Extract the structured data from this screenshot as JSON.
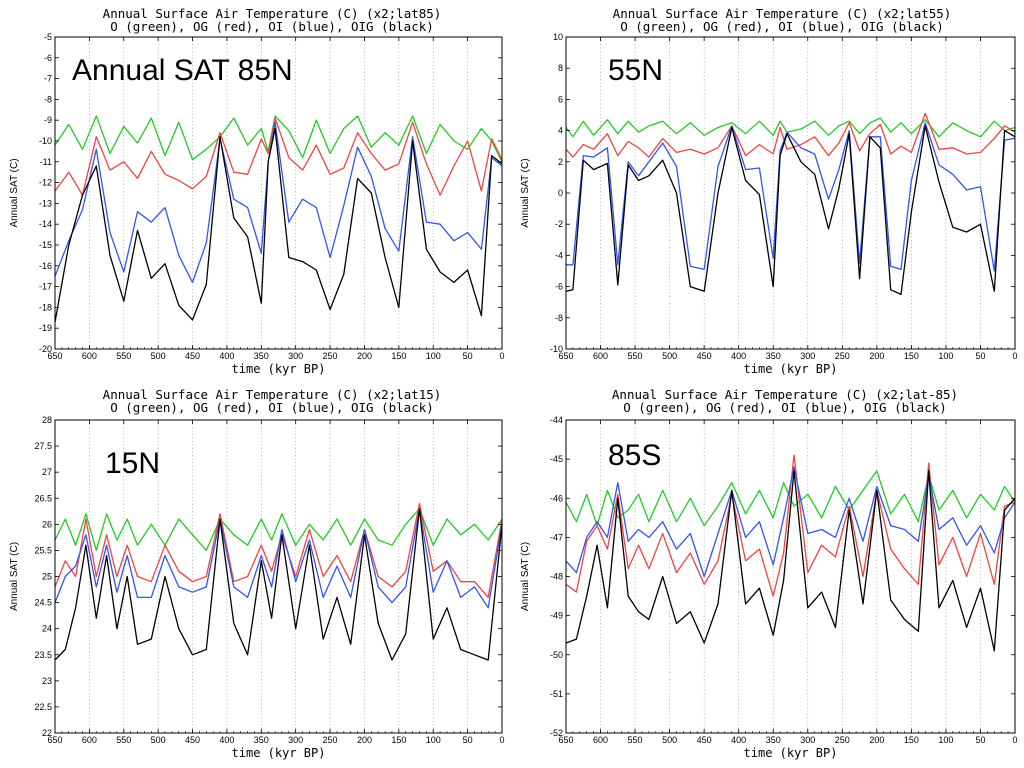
{
  "colors": {
    "green": "#22cc22",
    "red": "#ee4444",
    "blue": "#3355ee",
    "black": "#000000",
    "grid": "#888888"
  },
  "chart_data": [
    {
      "type": "line",
      "title": "Annual Surface Air Temperature (C) (x2;lat85)",
      "subtitle": "O (green), OG (red), OI (blue), OIG (black)",
      "overlay_label": "Annual SAT 85N",
      "xlabel": "time (kyr BP)",
      "ylabel": "Annual SAT (C)",
      "xlim": [
        650,
        0
      ],
      "ylim": [
        -20,
        -5
      ],
      "xticks": [
        650,
        600,
        550,
        500,
        450,
        400,
        350,
        300,
        250,
        200,
        150,
        100,
        50,
        0
      ],
      "yticks": [
        -20,
        -19,
        -18,
        -17,
        -16,
        -15,
        -14,
        -13,
        -12,
        -11,
        -10,
        -9,
        -8,
        -7,
        -6,
        -5
      ],
      "grid": "vertical-dotted",
      "x": [
        650,
        630,
        610,
        590,
        570,
        550,
        530,
        510,
        490,
        470,
        450,
        430,
        410,
        390,
        370,
        350,
        340,
        330,
        310,
        290,
        270,
        250,
        230,
        210,
        190,
        170,
        150,
        130,
        110,
        90,
        70,
        50,
        30,
        15,
        0
      ],
      "series": [
        {
          "name": "O",
          "color": "green",
          "values": [
            -10.2,
            -9.2,
            -10.4,
            -8.8,
            -10.6,
            -9.3,
            -10.1,
            -8.9,
            -10.7,
            -9.1,
            -10.9,
            -10.4,
            -9.8,
            -8.9,
            -10.2,
            -9.4,
            -10.5,
            -8.8,
            -9.5,
            -10.8,
            -9.0,
            -10.6,
            -9.4,
            -8.8,
            -10.3,
            -9.6,
            -10.2,
            -8.8,
            -10.6,
            -9.2,
            -10.0,
            -10.4,
            -9.4,
            -10.0,
            -11.0
          ]
        },
        {
          "name": "OG",
          "color": "red",
          "values": [
            -12.4,
            -11.5,
            -12.6,
            -9.8,
            -11.4,
            -11.0,
            -11.8,
            -10.5,
            -11.6,
            -11.9,
            -12.3,
            -11.7,
            -9.6,
            -11.5,
            -11.6,
            -9.9,
            -10.6,
            -8.9,
            -10.8,
            -11.4,
            -10.2,
            -11.6,
            -11.3,
            -9.6,
            -10.6,
            -11.4,
            -11.1,
            -9.1,
            -11.1,
            -12.6,
            -11.2,
            -10.0,
            -12.4,
            -9.9,
            -10.9
          ]
        },
        {
          "name": "OI",
          "color": "blue",
          "values": [
            -16.5,
            -14.8,
            -13.3,
            -10.4,
            -14.4,
            -16.3,
            -13.4,
            -13.9,
            -13.2,
            -15.5,
            -16.8,
            -14.9,
            -9.9,
            -12.8,
            -13.2,
            -15.4,
            -11.0,
            -9.1,
            -13.9,
            -12.8,
            -13.2,
            -15.6,
            -13.1,
            -10.3,
            -11.7,
            -14.2,
            -15.3,
            -9.8,
            -13.9,
            -14.0,
            -14.8,
            -14.4,
            -15.2,
            -10.8,
            -11.2
          ]
        },
        {
          "name": "OIG",
          "color": "black",
          "values": [
            -18.7,
            -15.0,
            -12.6,
            -11.2,
            -15.5,
            -17.7,
            -14.3,
            -16.6,
            -15.9,
            -17.9,
            -18.6,
            -16.9,
            -9.8,
            -13.7,
            -14.6,
            -17.8,
            -11.0,
            -9.4,
            -15.6,
            -15.8,
            -16.2,
            -18.1,
            -16.4,
            -11.8,
            -12.5,
            -15.6,
            -18.0,
            -10.0,
            -15.2,
            -16.3,
            -16.8,
            -16.2,
            -18.4,
            -10.7,
            -11.1
          ]
        }
      ]
    },
    {
      "type": "line",
      "title": "Annual Surface Air Temperature (C) (x2;lat55)",
      "subtitle": "O (green), OG (red), OI (blue), OIG (black)",
      "overlay_label": "55N",
      "xlabel": "time (kyr BP)",
      "ylabel": "Annual SAT (C)",
      "xlim": [
        650,
        0
      ],
      "ylim": [
        -10,
        10
      ],
      "xticks": [
        650,
        600,
        550,
        500,
        450,
        400,
        350,
        300,
        250,
        200,
        150,
        100,
        50,
        0
      ],
      "yticks": [
        -10,
        -8,
        -6,
        -4,
        -2,
        0,
        2,
        4,
        6,
        8,
        10
      ],
      "grid": "vertical-dotted",
      "x": [
        650,
        640,
        625,
        610,
        590,
        575,
        560,
        545,
        530,
        510,
        490,
        470,
        450,
        430,
        410,
        390,
        370,
        350,
        340,
        330,
        310,
        290,
        270,
        255,
        240,
        225,
        210,
        195,
        180,
        165,
        150,
        130,
        110,
        90,
        70,
        50,
        30,
        15,
        0
      ],
      "series": [
        {
          "name": "O",
          "color": "green",
          "values": [
            4.2,
            3.6,
            4.6,
            3.7,
            4.7,
            3.8,
            4.6,
            3.9,
            4.3,
            4.6,
            3.8,
            4.5,
            3.7,
            4.2,
            4.5,
            3.8,
            4.6,
            3.7,
            4.6,
            3.9,
            4.1,
            4.6,
            3.7,
            4.3,
            4.6,
            3.8,
            4.5,
            4.8,
            3.9,
            4.5,
            3.8,
            4.7,
            3.6,
            4.5,
            4.0,
            3.6,
            4.6,
            4.0,
            4.2
          ]
        },
        {
          "name": "OG",
          "color": "red",
          "values": [
            2.8,
            2.3,
            3.1,
            2.8,
            3.8,
            2.4,
            3.3,
            2.9,
            2.3,
            3.5,
            2.6,
            2.8,
            2.5,
            2.9,
            4.3,
            2.4,
            3.1,
            2.5,
            4.2,
            2.8,
            3.1,
            3.6,
            2.4,
            3.2,
            4.5,
            2.7,
            3.8,
            4.4,
            2.5,
            3.0,
            2.6,
            5.1,
            2.8,
            2.9,
            2.5,
            2.6,
            3.5,
            4.3,
            3.9
          ]
        },
        {
          "name": "OI",
          "color": "blue",
          "values": [
            -4.6,
            -4.6,
            2.4,
            2.3,
            2.9,
            -4.6,
            2.0,
            1.1,
            2.0,
            3.2,
            1.7,
            -4.7,
            -4.9,
            1.7,
            4.3,
            1.5,
            1.6,
            -4.2,
            2.7,
            3.9,
            2.9,
            2.5,
            -0.4,
            1.5,
            4.0,
            -4.5,
            3.6,
            3.6,
            -4.7,
            -4.9,
            0.8,
            4.5,
            1.8,
            1.2,
            0.2,
            0.4,
            -5.0,
            3.4,
            3.5
          ]
        },
        {
          "name": "OIG",
          "color": "black",
          "values": [
            -6.3,
            -6.2,
            2.1,
            1.5,
            1.9,
            -5.9,
            1.8,
            0.8,
            1.1,
            2.1,
            0.0,
            -6.0,
            -6.3,
            0.0,
            4.2,
            0.8,
            -0.1,
            -6.0,
            2.4,
            3.8,
            2.0,
            1.2,
            -2.3,
            0.3,
            3.8,
            -5.5,
            3.6,
            2.9,
            -6.2,
            -6.5,
            -1.2,
            4.3,
            0.7,
            -2.2,
            -2.5,
            -2.0,
            -6.3,
            4.0,
            3.6
          ]
        }
      ]
    },
    {
      "type": "line",
      "title": "Annual Surface Air Temperature (C) (x2;lat15)",
      "subtitle": "O (green), OG (red), OI (blue), OIG (black)",
      "overlay_label": "15N",
      "xlabel": "time (kyr BP)",
      "ylabel": "Annual SAT (C)",
      "xlim": [
        650,
        0
      ],
      "ylim": [
        22,
        28
      ],
      "xticks": [
        650,
        600,
        550,
        500,
        450,
        400,
        350,
        300,
        250,
        200,
        150,
        100,
        50,
        0
      ],
      "yticks": [
        22,
        22.5,
        23,
        23.5,
        24,
        24.5,
        25,
        25.5,
        26,
        26.5,
        27,
        27.5,
        28
      ],
      "grid": "vertical-dotted",
      "x": [
        650,
        635,
        620,
        605,
        590,
        575,
        560,
        545,
        530,
        510,
        490,
        470,
        450,
        430,
        410,
        390,
        370,
        350,
        335,
        320,
        300,
        280,
        260,
        240,
        220,
        200,
        180,
        160,
        140,
        120,
        100,
        80,
        60,
        40,
        20,
        0
      ],
      "series": [
        {
          "name": "O",
          "color": "green",
          "values": [
            25.7,
            26.1,
            25.6,
            26.2,
            25.5,
            26.2,
            25.7,
            26.1,
            25.6,
            26.0,
            25.6,
            26.1,
            25.8,
            25.5,
            26.1,
            25.8,
            25.6,
            26.1,
            25.7,
            26.2,
            25.6,
            26.0,
            25.7,
            26.1,
            25.6,
            26.1,
            25.7,
            25.6,
            26.0,
            26.3,
            25.6,
            26.1,
            25.8,
            26.0,
            25.7,
            26.1
          ]
        },
        {
          "name": "OG",
          "color": "red",
          "values": [
            24.8,
            25.3,
            25.0,
            26.1,
            25.0,
            25.8,
            25.0,
            25.6,
            25.0,
            24.9,
            25.6,
            25.1,
            24.9,
            25.0,
            26.2,
            24.9,
            25.0,
            25.6,
            25.1,
            25.8,
            25.0,
            25.9,
            25.0,
            25.4,
            24.9,
            25.9,
            25.0,
            24.8,
            25.1,
            26.4,
            25.1,
            25.3,
            24.9,
            24.9,
            24.6,
            26.1
          ]
        },
        {
          "name": "OI",
          "color": "blue",
          "values": [
            24.5,
            25.0,
            25.2,
            25.8,
            24.8,
            25.6,
            24.7,
            25.4,
            24.6,
            24.6,
            25.4,
            24.8,
            24.7,
            24.8,
            26.1,
            24.8,
            24.6,
            25.4,
            24.8,
            25.9,
            24.9,
            25.7,
            24.6,
            25.2,
            24.6,
            25.9,
            24.8,
            24.5,
            24.8,
            26.3,
            24.7,
            25.3,
            24.6,
            24.8,
            24.4,
            26.0
          ]
        },
        {
          "name": "OIG",
          "color": "black",
          "values": [
            23.4,
            23.6,
            24.4,
            25.6,
            24.2,
            25.4,
            24.0,
            25.0,
            23.7,
            23.8,
            25.0,
            24.0,
            23.5,
            23.6,
            26.1,
            24.1,
            23.5,
            25.3,
            24.2,
            25.8,
            24.0,
            25.6,
            23.8,
            24.6,
            23.7,
            25.8,
            24.1,
            23.4,
            23.9,
            26.3,
            23.8,
            24.4,
            23.6,
            23.5,
            23.4,
            26.0
          ]
        }
      ]
    },
    {
      "type": "line",
      "title": "Annual Surface Air Temperature (C) (x2;lat-85)",
      "subtitle": "O (green), OG (red), OI (blue), OIG (black)",
      "overlay_label": "85S",
      "xlabel": "time (kyr BP)",
      "ylabel": "Annual SAT (C)",
      "xlim": [
        650,
        0
      ],
      "ylim": [
        -52,
        -44
      ],
      "xticks": [
        650,
        600,
        550,
        500,
        450,
        400,
        350,
        300,
        250,
        200,
        150,
        100,
        50,
        0
      ],
      "yticks": [
        -52,
        -51,
        -50,
        -49,
        -48,
        -47,
        -46,
        -45,
        -44
      ],
      "grid": "vertical-dotted",
      "x": [
        650,
        635,
        620,
        605,
        590,
        575,
        560,
        545,
        530,
        510,
        490,
        470,
        450,
        430,
        410,
        390,
        370,
        350,
        335,
        320,
        300,
        280,
        260,
        240,
        220,
        200,
        180,
        160,
        140,
        125,
        110,
        90,
        70,
        50,
        30,
        15,
        0
      ],
      "series": [
        {
          "name": "O",
          "color": "green",
          "values": [
            -46.1,
            -46.6,
            -45.9,
            -46.7,
            -45.8,
            -46.5,
            -46.3,
            -45.9,
            -46.6,
            -45.8,
            -46.6,
            -46.0,
            -46.7,
            -46.2,
            -45.6,
            -46.4,
            -45.8,
            -46.5,
            -45.6,
            -46.2,
            -45.9,
            -46.5,
            -45.7,
            -46.3,
            -45.8,
            -45.3,
            -46.4,
            -45.9,
            -46.6,
            -45.4,
            -46.3,
            -45.8,
            -46.5,
            -45.9,
            -46.3,
            -45.7,
            -46.1
          ]
        },
        {
          "name": "OG",
          "color": "red",
          "values": [
            -48.2,
            -48.4,
            -47.1,
            -46.7,
            -47.3,
            -45.9,
            -47.8,
            -47.2,
            -47.8,
            -46.9,
            -47.9,
            -47.4,
            -48.2,
            -47.6,
            -45.9,
            -47.6,
            -47.3,
            -48.5,
            -47.4,
            -44.9,
            -47.9,
            -47.2,
            -47.5,
            -46.2,
            -48.0,
            -45.8,
            -47.3,
            -47.8,
            -48.2,
            -45.1,
            -47.7,
            -47.0,
            -48.0,
            -46.9,
            -48.2,
            -46.2,
            -46.1
          ]
        },
        {
          "name": "OI",
          "color": "blue",
          "values": [
            -47.6,
            -47.9,
            -47.0,
            -46.6,
            -47.0,
            -45.6,
            -47.1,
            -46.8,
            -47.0,
            -46.6,
            -47.3,
            -46.9,
            -48.0,
            -46.9,
            -45.8,
            -47.0,
            -46.6,
            -47.7,
            -46.5,
            -45.2,
            -46.9,
            -46.8,
            -47.0,
            -46.0,
            -47.1,
            -45.7,
            -46.7,
            -46.8,
            -47.1,
            -45.4,
            -46.8,
            -46.5,
            -47.2,
            -46.7,
            -47.4,
            -46.5,
            -46.1
          ]
        },
        {
          "name": "OIG",
          "color": "black",
          "values": [
            -49.7,
            -49.6,
            -48.5,
            -47.2,
            -48.8,
            -46.0,
            -48.5,
            -48.9,
            -49.1,
            -48.0,
            -49.2,
            -48.9,
            -49.7,
            -48.7,
            -45.8,
            -48.7,
            -48.3,
            -49.5,
            -48.1,
            -45.3,
            -48.8,
            -48.4,
            -49.3,
            -46.3,
            -48.7,
            -45.8,
            -48.6,
            -49.1,
            -49.4,
            -45.3,
            -48.8,
            -48.1,
            -49.3,
            -48.3,
            -49.9,
            -46.3,
            -46.0
          ]
        }
      ]
    }
  ]
}
